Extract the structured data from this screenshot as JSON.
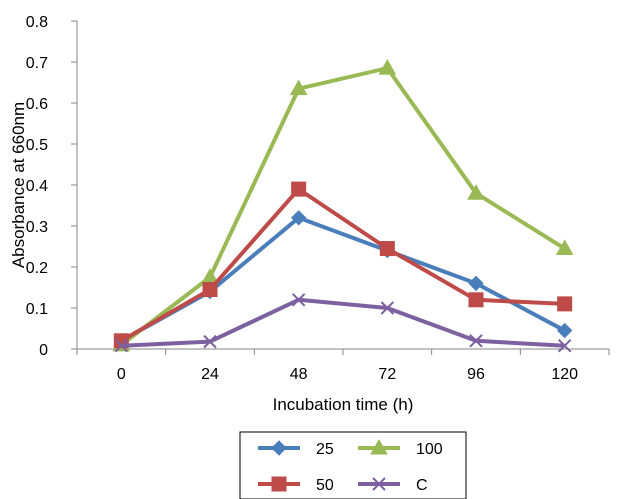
{
  "chart_data": {
    "type": "line",
    "title": "",
    "xlabel": "Incubation time (h)",
    "ylabel": "Absorbance at 660nm",
    "categories": [
      "0",
      "24",
      "48",
      "72",
      "96",
      "120"
    ],
    "ylim": [
      0,
      0.8
    ],
    "yticks": [
      "0",
      "0.1",
      "0.2",
      "0.3",
      "0.4",
      "0.5",
      "0.6",
      "0.7",
      "0.8"
    ],
    "grid": false,
    "legend_position": "bottom",
    "series": [
      {
        "name": "25",
        "color": "#4a7ebb",
        "marker": "diamond",
        "values": [
          0.02,
          0.14,
          0.32,
          0.24,
          0.16,
          0.045
        ]
      },
      {
        "name": "100",
        "color": "#98b954",
        "marker": "triangle",
        "values": [
          0.01,
          0.175,
          0.635,
          0.685,
          0.38,
          0.245
        ]
      },
      {
        "name": "50",
        "color": "#be4b48",
        "marker": "square",
        "values": [
          0.02,
          0.145,
          0.39,
          0.245,
          0.12,
          0.11
        ]
      },
      {
        "name": "C",
        "color": "#7d60a0",
        "marker": "x",
        "values": [
          0.008,
          0.018,
          0.12,
          0.1,
          0.02,
          0.008
        ]
      }
    ]
  }
}
